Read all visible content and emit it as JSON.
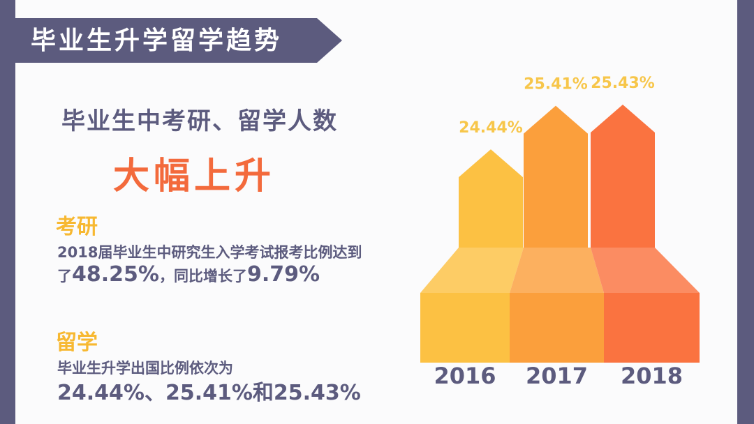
{
  "banner": {
    "title": "毕业生升学留学趋势"
  },
  "headline": "毕业生中考研、留学人数",
  "highlight": "大幅上升",
  "kaoyan": {
    "title": "考研",
    "line1": "2018届毕业生中研究生入学考试报考比例达到",
    "line2_prefix": "了",
    "line2_value1": "48.25%",
    "line2_mid": "，同比增长了",
    "line2_value2": "9.79%"
  },
  "liuxue": {
    "title": "留学",
    "line1": "毕业生升学出国比例依次为",
    "line2": "24.44%、25.41%和25.43%"
  },
  "colors": {
    "background": "#5c5b7e",
    "panel": "#fbfbfc",
    "accent_orange": "#f36a3c",
    "accent_yellow": "#f7b831",
    "text_dark": "#5c5b7e",
    "bar_2016": "#fcc143",
    "bar_2017": "#fb9f3c",
    "bar_2018": "#fa7340"
  },
  "chart_data": {
    "type": "bar",
    "categories": [
      "2016",
      "2017",
      "2018"
    ],
    "values": [
      24.44,
      25.41,
      25.43
    ],
    "value_labels": [
      "24.44%",
      "25.41%",
      "25.43%"
    ],
    "title": "",
    "xlabel": "",
    "ylabel": ""
  }
}
